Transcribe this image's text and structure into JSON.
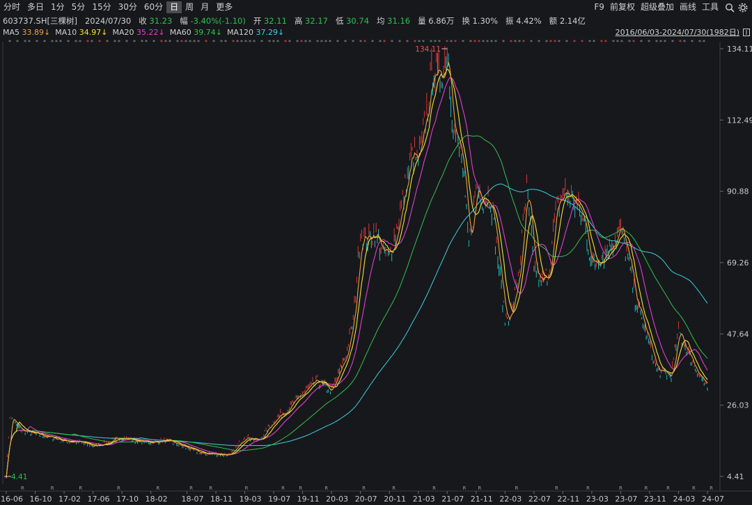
{
  "toolbar": {
    "periods": [
      "分时",
      "多日",
      "1分",
      "5分",
      "15分",
      "30分",
      "60分",
      "日",
      "周",
      "月",
      "更多"
    ],
    "active": "日",
    "right": [
      "F9",
      "前复权",
      "超级叠加",
      "画线",
      "工具"
    ]
  },
  "quote": {
    "code": "603737.SH[三棵树]",
    "date": "2024/07/30",
    "close_label": "收",
    "close": "31.23",
    "amp_label": "幅",
    "amp": "-3.40%(-1.10)",
    "open_label": "开",
    "open": "32.11",
    "high_label": "高",
    "high": "32.17",
    "low_label": "低",
    "low": "30.74",
    "avg_label": "均",
    "avg": "31.16",
    "vol_label": "量",
    "vol": "6.86万",
    "turn_label": "换",
    "turn": "1.30%",
    "swing_label": "振",
    "swing": "4.42%",
    "amount_label": "额",
    "amount": "2.14亿"
  },
  "ma": [
    {
      "name": "MA5",
      "value": "33.89↓",
      "color": "#e8a33c"
    },
    {
      "name": "MA10",
      "value": "34.97↓",
      "color": "#f5e23c"
    },
    {
      "name": "MA20",
      "value": "35.22↓",
      "color": "#e040d0"
    },
    {
      "name": "MA60",
      "value": "39.74↓",
      "color": "#33c24b"
    },
    {
      "name": "MA120",
      "value": "37.29↓",
      "color": "#3fd0e0"
    }
  ],
  "range": "2016/06/03-2024/07/30(1982日)",
  "chart_data": {
    "type": "candlestick-line",
    "y_ticks": [
      "134.11",
      "112.49",
      "90.88",
      "69.26",
      "47.64",
      "26.03",
      "4.41"
    ],
    "ylim": [
      4.41,
      134.11
    ],
    "x_ticks": [
      "16-06",
      "16-10",
      "17-02",
      "17-06",
      "17-10",
      "18-02",
      "18-07",
      "18-11",
      "19-03",
      "19-07",
      "19-11",
      "20-03",
      "20-07",
      "20-11",
      "21-03",
      "21-07",
      "21-11",
      "22-03",
      "22-07",
      "22-11",
      "23-03",
      "23-07",
      "23-11",
      "24-03",
      "24-07"
    ],
    "max_label": "134.11",
    "min_label": "4.41",
    "price_series": [
      [
        "16-06",
        4.41
      ],
      [
        "16-06",
        22.5
      ],
      [
        "16-08",
        18.5
      ],
      [
        "16-10",
        17.2
      ],
      [
        "16-12",
        16.4
      ],
      [
        "17-02",
        15.2
      ],
      [
        "17-04",
        14.9
      ],
      [
        "17-06",
        13.6
      ],
      [
        "17-08",
        14.6
      ],
      [
        "17-10",
        16.3
      ],
      [
        "17-12",
        15.2
      ],
      [
        "18-02",
        14.8
      ],
      [
        "18-04",
        15.4
      ],
      [
        "18-07",
        13.1
      ],
      [
        "18-09",
        11.4
      ],
      [
        "18-11",
        11.2
      ],
      [
        "19-01",
        10.9
      ],
      [
        "19-03",
        16.5
      ],
      [
        "19-05",
        15.2
      ],
      [
        "19-07",
        21.5
      ],
      [
        "19-09",
        25.1
      ],
      [
        "19-11",
        29.6
      ],
      [
        "20-01",
        33.4
      ],
      [
        "20-03",
        30.2
      ],
      [
        "20-05",
        41.5
      ],
      [
        "20-06",
        52.0
      ],
      [
        "20-07",
        78.5
      ],
      [
        "20-08",
        76.2
      ],
      [
        "20-09",
        78.8
      ],
      [
        "20-10",
        72.2
      ],
      [
        "20-11",
        71.0
      ],
      [
        "20-12",
        79.5
      ],
      [
        "21-01",
        89.5
      ],
      [
        "21-02",
        102.0
      ],
      [
        "21-03",
        99.5
      ],
      [
        "21-04",
        112.5
      ],
      [
        "21-05",
        128.0
      ],
      [
        "21-06",
        124.5
      ],
      [
        "21-07",
        134.11
      ],
      [
        "21-08",
        108.0
      ],
      [
        "21-09",
        101.0
      ],
      [
        "21-10",
        74.0
      ],
      [
        "21-11",
        92.5
      ],
      [
        "21-12",
        88.5
      ],
      [
        "22-01",
        89.5
      ],
      [
        "22-02",
        70.5
      ],
      [
        "22-03",
        52.0
      ],
      [
        "22-04",
        55.0
      ],
      [
        "22-05",
        68.0
      ],
      [
        "22-06",
        91.0
      ],
      [
        "22-07",
        68.0
      ],
      [
        "22-08",
        62.5
      ],
      [
        "22-09",
        66.0
      ],
      [
        "22-10",
        84.5
      ],
      [
        "22-11",
        90.5
      ],
      [
        "22-12",
        89.5
      ],
      [
        "23-01",
        86.0
      ],
      [
        "23-02",
        81.0
      ],
      [
        "23-03",
        68.5
      ],
      [
        "23-05",
        72.5
      ],
      [
        "23-07",
        79.5
      ],
      [
        "23-08",
        70.5
      ],
      [
        "23-09",
        58.5
      ],
      [
        "23-11",
        44.0
      ],
      [
        "23-12",
        36.5
      ],
      [
        "24-02",
        35.0
      ],
      [
        "24-03",
        48.5
      ],
      [
        "24-05",
        38.5
      ],
      [
        "24-07",
        31.23
      ]
    ]
  }
}
